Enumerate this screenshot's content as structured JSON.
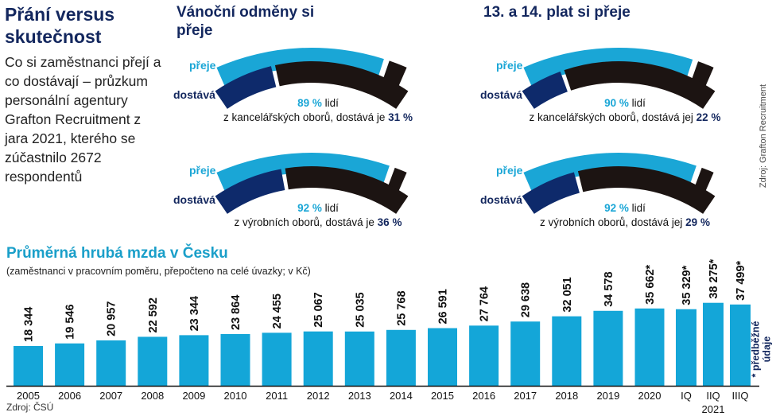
{
  "intro": {
    "title": "Přání versus skutečnost",
    "text": "Co si zaměstnanci přejí a co dostávají – průzkum personální agentury Grafton Recruitment z jara 2021, kterého se zúčastnilo 2672 respondentů"
  },
  "colors": {
    "want": "#1aa6d6",
    "get": "#0e2a6b",
    "rest": "#1c1412",
    "bars": "#14a6d8"
  },
  "sections": [
    {
      "title": "Vánoční odměny si přeje"
    },
    {
      "title": "13. a 14. plat si přeje"
    }
  ],
  "panels": [
    {
      "want_label": "přeje",
      "get_label": "dostává",
      "want_pct": 89,
      "get_pct": 31,
      "want_text": "89 %",
      "people": "lidí",
      "line2": "z kancelářských oborů, dostává je",
      "get_text": "31 %"
    },
    {
      "want_label": "přeje",
      "get_label": "dostává",
      "want_pct": 90,
      "get_pct": 22,
      "want_text": "90 %",
      "people": "lidí",
      "line2": "z kancelářských oborů, dostává jej",
      "get_text": "22 %"
    },
    {
      "want_label": "přeje",
      "get_label": "dostává",
      "want_pct": 92,
      "get_pct": 36,
      "want_text": "92 %",
      "people": "lidí",
      "line2": "z výrobních oborů, dostává je",
      "get_text": "36 %"
    },
    {
      "want_label": "přeje",
      "get_label": "dostává",
      "want_pct": 92,
      "get_pct": 29,
      "want_text": "92 %",
      "people": "lidí",
      "line2": "z výrobních oborů, dostává jej",
      "get_text": "29 %"
    }
  ],
  "survey_source": "Zdroj: Grafton Recruitment",
  "chart_data": {
    "type": "bar",
    "title": "Průměrná hrubá mzda v Česku",
    "subtitle": "(zaměstnanci v pracovním poměru, přepočteno na celé úvazky; v Kč)",
    "categories": [
      "2005",
      "2006",
      "2007",
      "2008",
      "2009",
      "2010",
      "2011",
      "2012",
      "2013",
      "2014",
      "2015",
      "2016",
      "2017",
      "2018",
      "2019",
      "2020",
      "IQ",
      "IIQ",
      "IIIQ"
    ],
    "values": [
      18344,
      19546,
      20957,
      22592,
      23344,
      23864,
      24455,
      25067,
      25035,
      25768,
      26591,
      27764,
      29638,
      32051,
      34578,
      35662,
      35329,
      38275,
      37499
    ],
    "labels": [
      "18 344",
      "19 546",
      "20 957",
      "22 592",
      "23 344",
      "23 864",
      "24 455",
      "25 067",
      "25 035",
      "25 768",
      "26 591",
      "27 764",
      "29 638",
      "32 051",
      "34 578",
      "35 662*",
      "35 329*",
      "38 275*",
      "37 499*"
    ],
    "group_label": "2021",
    "footnote": "* předběžné údaje",
    "source": "Zdroj: ČSÚ",
    "ylim": [
      0,
      40000
    ],
    "grid": false
  }
}
